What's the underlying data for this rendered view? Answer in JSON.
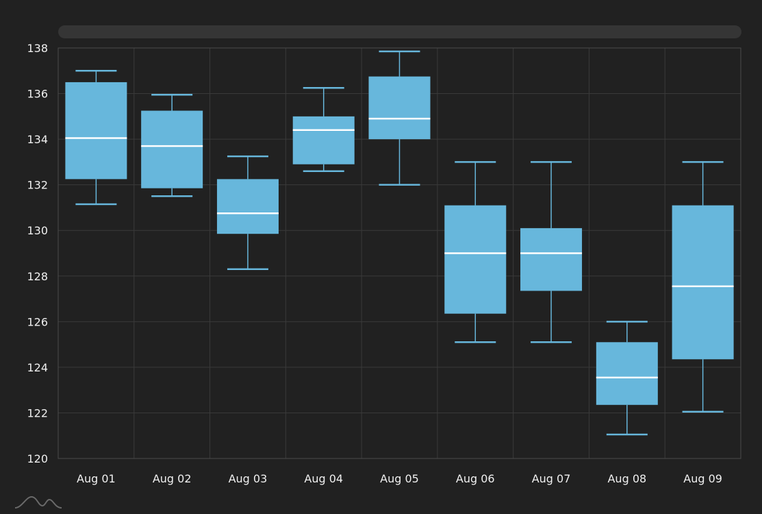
{
  "chart_data": {
    "type": "box",
    "title": "",
    "xlabel": "",
    "ylabel": "",
    "ylim": [
      120,
      138
    ],
    "yticks": [
      120,
      122,
      124,
      126,
      128,
      130,
      132,
      134,
      136,
      138
    ],
    "grid": true,
    "categories": [
      "Aug 01",
      "Aug 02",
      "Aug 03",
      "Aug 04",
      "Aug 05",
      "Aug 06",
      "Aug 07",
      "Aug 08",
      "Aug 09"
    ],
    "series": [
      {
        "name": "Aug 01",
        "low": 131.15,
        "q1": 132.25,
        "median": 134.05,
        "q3": 136.5,
        "high": 137.0
      },
      {
        "name": "Aug 02",
        "low": 131.5,
        "q1": 131.85,
        "median": 133.7,
        "q3": 135.25,
        "high": 135.95
      },
      {
        "name": "Aug 03",
        "low": 128.3,
        "q1": 129.85,
        "median": 130.75,
        "q3": 132.25,
        "high": 133.25
      },
      {
        "name": "Aug 04",
        "low": 132.6,
        "q1": 132.9,
        "median": 134.4,
        "q3": 135.0,
        "high": 136.25
      },
      {
        "name": "Aug 05",
        "low": 132.0,
        "q1": 134.0,
        "median": 134.9,
        "q3": 136.75,
        "high": 137.85
      },
      {
        "name": "Aug 06",
        "low": 125.1,
        "q1": 126.35,
        "median": 129.0,
        "q3": 131.1,
        "high": 133.0
      },
      {
        "name": "Aug 07",
        "low": 125.1,
        "q1": 127.35,
        "median": 129.0,
        "q3": 130.1,
        "high": 133.0
      },
      {
        "name": "Aug 08",
        "low": 121.05,
        "q1": 122.35,
        "median": 123.55,
        "q3": 125.1,
        "high": 126.0
      },
      {
        "name": "Aug 09",
        "low": 122.05,
        "q1": 124.35,
        "median": 127.55,
        "q3": 131.1,
        "high": 133.0
      }
    ],
    "colors": {
      "box": "#67b7dc",
      "median": "#ffffff",
      "grid": "#3a3a3a",
      "background": "#212121"
    }
  }
}
